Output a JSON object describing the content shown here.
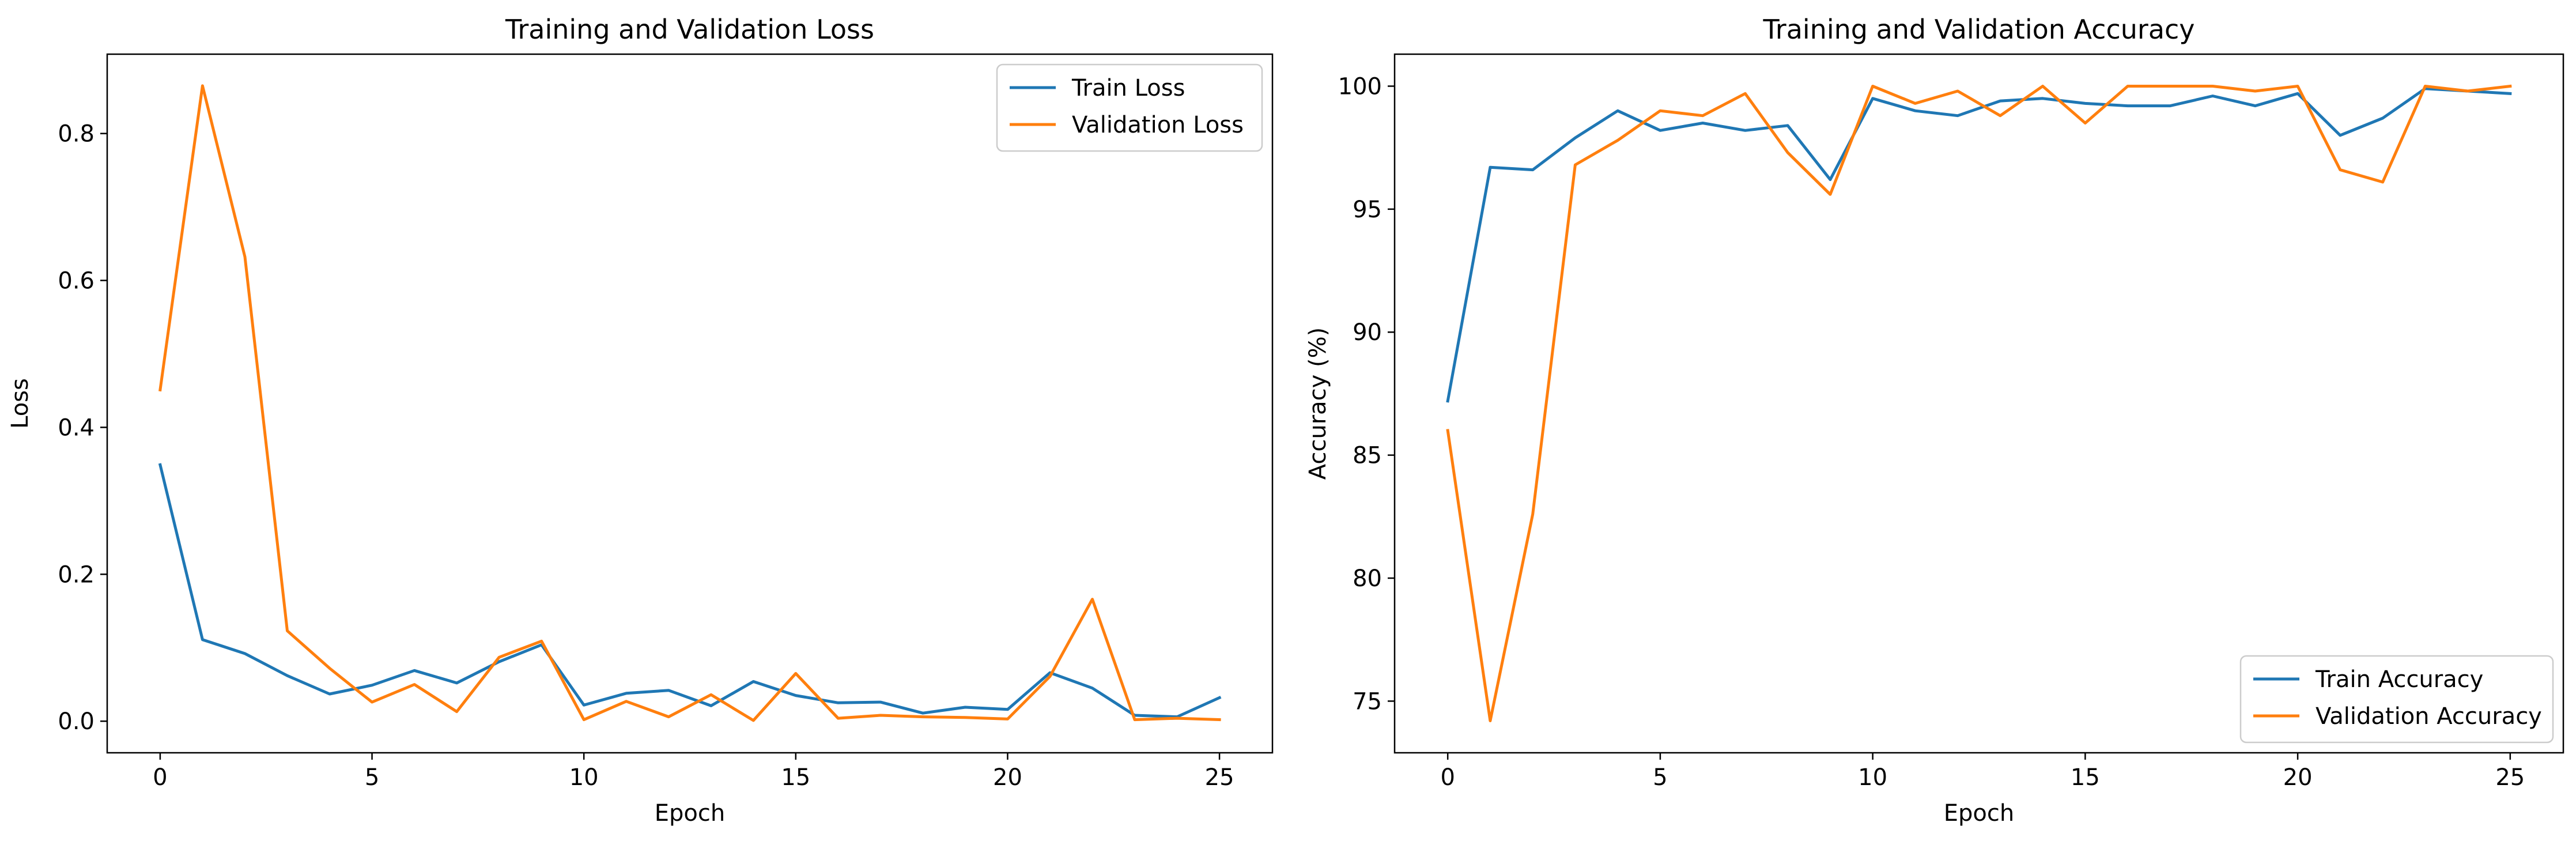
{
  "chart_data": [
    {
      "type": "line",
      "title": "Training and Validation Loss",
      "xlabel": "Epoch",
      "ylabel": "Loss",
      "xlim": [
        -1.25,
        26.25
      ],
      "ylim": [
        -0.043,
        0.908
      ],
      "xticks": [
        0,
        5,
        10,
        15,
        20,
        25
      ],
      "yticks": [
        0.0,
        0.2,
        0.4,
        0.6,
        0.8
      ],
      "ytick_format": "fixed1",
      "grid": false,
      "legend_position": "upper right",
      "x": [
        0,
        1,
        2,
        3,
        4,
        5,
        6,
        7,
        8,
        9,
        10,
        11,
        12,
        13,
        14,
        15,
        16,
        17,
        18,
        19,
        20,
        21,
        22,
        23,
        24,
        25
      ],
      "series": [
        {
          "name": "Train Loss",
          "color": "#1f77b4",
          "values": [
            0.349,
            0.111,
            0.092,
            0.062,
            0.037,
            0.049,
            0.069,
            0.052,
            0.081,
            0.104,
            0.022,
            0.038,
            0.042,
            0.021,
            0.054,
            0.035,
            0.025,
            0.026,
            0.011,
            0.019,
            0.016,
            0.066,
            0.045,
            0.008,
            0.006,
            0.032
          ]
        },
        {
          "name": "Validation Loss",
          "color": "#ff7f0e",
          "values": [
            0.451,
            0.865,
            0.632,
            0.123,
            0.072,
            0.026,
            0.05,
            0.013,
            0.087,
            0.109,
            0.002,
            0.027,
            0.006,
            0.036,
            0.001,
            0.065,
            0.004,
            0.008,
            0.006,
            0.005,
            0.003,
            0.061,
            0.166,
            0.002,
            0.004,
            0.002
          ]
        }
      ]
    },
    {
      "type": "line",
      "title": "Training and Validation Accuracy",
      "xlabel": "Epoch",
      "ylabel": "Accuracy (%)",
      "xlim": [
        -1.25,
        26.25
      ],
      "ylim": [
        72.9,
        101.3
      ],
      "xticks": [
        0,
        5,
        10,
        15,
        20,
        25
      ],
      "yticks": [
        75,
        80,
        85,
        90,
        95,
        100
      ],
      "ytick_format": "int",
      "grid": false,
      "legend_position": "lower right",
      "x": [
        0,
        1,
        2,
        3,
        4,
        5,
        6,
        7,
        8,
        9,
        10,
        11,
        12,
        13,
        14,
        15,
        16,
        17,
        18,
        19,
        20,
        21,
        22,
        23,
        24,
        25
      ],
      "series": [
        {
          "name": "Train Accuracy",
          "color": "#1f77b4",
          "values": [
            87.2,
            96.7,
            96.6,
            97.9,
            99.0,
            98.2,
            98.5,
            98.2,
            98.4,
            96.2,
            99.5,
            99.0,
            98.8,
            99.4,
            99.5,
            99.3,
            99.2,
            99.2,
            99.6,
            99.2,
            99.7,
            98.0,
            98.7,
            99.9,
            99.8,
            99.7
          ]
        },
        {
          "name": "Validation Accuracy",
          "color": "#ff7f0e",
          "values": [
            86.0,
            74.2,
            82.6,
            96.8,
            97.8,
            99.0,
            98.8,
            99.7,
            97.3,
            95.6,
            100.0,
            99.3,
            99.8,
            98.8,
            100.0,
            98.5,
            100.0,
            100.0,
            100.0,
            99.8,
            100.0,
            96.6,
            96.1,
            100.0,
            99.8,
            100.0
          ]
        }
      ]
    }
  ]
}
